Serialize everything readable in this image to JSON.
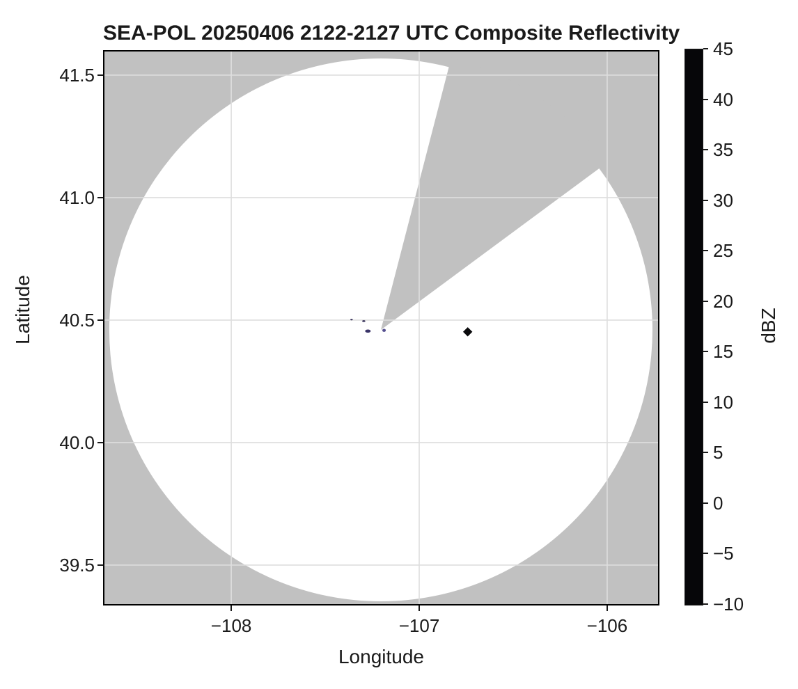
{
  "title": "SEA-POL 20250406 2122-2127 UTC Composite Reflectivity",
  "axes": {
    "xlabel": "Longitude",
    "ylabel": "Latitude",
    "xlim": [
      -108.682,
      -105.722
    ],
    "ylim": [
      39.335,
      41.602
    ],
    "x_ticks": [
      {
        "value": -108,
        "label": "−108"
      },
      {
        "value": -107,
        "label": "−107"
      },
      {
        "value": -106,
        "label": "−106"
      }
    ],
    "y_ticks": [
      {
        "value": 41.5,
        "label": "41.5"
      },
      {
        "value": 41.0,
        "label": "41.0"
      },
      {
        "value": 40.5,
        "label": "40.5"
      },
      {
        "value": 40.0,
        "label": "40.0"
      },
      {
        "value": 39.5,
        "label": "39.5"
      }
    ],
    "grid": true
  },
  "colorbar": {
    "label": "dBZ",
    "min": -10,
    "max": 45,
    "band_step": 1,
    "ticks": [
      {
        "value": 45,
        "label": "45"
      },
      {
        "value": 40,
        "label": "40"
      },
      {
        "value": 35,
        "label": "35"
      },
      {
        "value": 30,
        "label": "30"
      },
      {
        "value": 25,
        "label": "25"
      },
      {
        "value": 20,
        "label": "20"
      },
      {
        "value": 15,
        "label": "15"
      },
      {
        "value": 10,
        "label": "10"
      },
      {
        "value": 5,
        "label": "5"
      },
      {
        "value": 0,
        "label": "0"
      },
      {
        "value": -5,
        "label": "−5"
      },
      {
        "value": -10,
        "label": "−10"
      }
    ],
    "stops": [
      {
        "v": -10,
        "c": "#000000"
      },
      {
        "v": -8,
        "c": "#191622"
      },
      {
        "v": -5,
        "c": "#2d2939"
      },
      {
        "v": -3,
        "c": "#383254"
      },
      {
        "v": 0,
        "c": "#4c4475"
      },
      {
        "v": 2,
        "c": "#585a92"
      },
      {
        "v": 5,
        "c": "#4f7cab"
      },
      {
        "v": 7,
        "c": "#4f94a4"
      },
      {
        "v": 10,
        "c": "#5fae8c"
      },
      {
        "v": 12,
        "c": "#8ec193"
      },
      {
        "v": 15,
        "c": "#d9e5b8"
      },
      {
        "v": 17,
        "c": "#f4f1cd"
      },
      {
        "v": 20,
        "c": "#eec893"
      },
      {
        "v": 22,
        "c": "#e9a96c"
      },
      {
        "v": 25,
        "c": "#e06a3b"
      },
      {
        "v": 27,
        "c": "#d64f30"
      },
      {
        "v": 30,
        "c": "#bd2a28"
      },
      {
        "v": 32,
        "c": "#ab1c44"
      },
      {
        "v": 35,
        "c": "#ac2470"
      },
      {
        "v": 37,
        "c": "#c4539a"
      },
      {
        "v": 40,
        "c": "#dcaed4"
      },
      {
        "v": 42,
        "c": "#b78cc8"
      },
      {
        "v": 43,
        "c": "#9268ae"
      },
      {
        "v": 45,
        "c": "#47175e"
      }
    ]
  },
  "chart_data": {
    "type": "heatmap",
    "subtype": "radar-composite-reflectivity-map",
    "title": "SEA-POL 20250406 2122-2127 UTC Composite Reflectivity",
    "xlabel": "Longitude",
    "ylabel": "Latitude",
    "xlim": [
      -108.682,
      -105.722
    ],
    "ylim": [
      39.335,
      41.602
    ],
    "legend_position": "right-colorbar",
    "radar_coverage": {
      "center_lon": -107.204,
      "center_lat": 40.46,
      "range_deg_lat": 1.108,
      "blocked_sector_azimuth_deg": {
        "start": 14.5,
        "end": 53.5
      },
      "masked_color": "#c1c1c1",
      "coverage_color": "#ffffff",
      "grid_color": "#dedede"
    },
    "echoes": [
      {
        "lon": -107.36,
        "lat": 40.502,
        "dbz": -3,
        "color": "#322c55",
        "shape": "ellipse",
        "w": 3.5,
        "h": 2
      },
      {
        "lon": -107.295,
        "lat": 40.496,
        "dbz": -3,
        "color": "#322c55",
        "shape": "ellipse",
        "w": 4.5,
        "h": 2.5
      },
      {
        "lon": -107.273,
        "lat": 40.455,
        "dbz": -1,
        "color": "#3a3468",
        "shape": "ellipse",
        "w": 8,
        "h": 4.5
      },
      {
        "lon": -107.187,
        "lat": 40.458,
        "dbz": 1,
        "color": "#565090",
        "shape": "ellipse",
        "w": 5,
        "h": 4.5
      },
      {
        "lon": -106.742,
        "lat": 40.452,
        "dbz": -10,
        "color": "#0b0b0d",
        "shape": "diamond",
        "w": 9.5,
        "h": 9.5
      }
    ]
  }
}
